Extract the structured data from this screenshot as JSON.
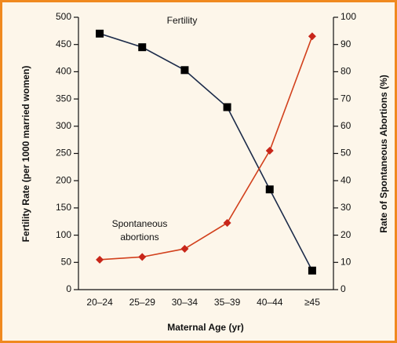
{
  "chart_data": {
    "type": "line",
    "xlabel": "Maternal Age (yr)",
    "ylabel": "Fertility Rate (per 1000 married women)",
    "y2label": "Rate of Spontaneous Abortions (%)",
    "categories": [
      "20–24",
      "25–29",
      "30–34",
      "35–39",
      "40–44",
      "≥45"
    ],
    "series": [
      {
        "name": "Fertility",
        "color": "#1c2b4a",
        "marker_color": "#000000",
        "marker": "square",
        "values": [
          470,
          445,
          403,
          335,
          184,
          35
        ]
      },
      {
        "name": "Spontaneous abortions",
        "color": "#d2401c",
        "marker_color": "#c8261a",
        "marker": "diamond",
        "axis": "y2",
        "values": [
          11,
          12,
          15,
          24.5,
          51,
          93
        ]
      }
    ],
    "ylim": [
      0,
      500
    ],
    "yticks": [
      0,
      50,
      100,
      150,
      200,
      250,
      300,
      350,
      400,
      450,
      500
    ],
    "y2lim": [
      0,
      100
    ],
    "y2ticks": [
      0,
      10,
      20,
      30,
      40,
      50,
      60,
      70,
      80,
      90,
      100
    ]
  }
}
